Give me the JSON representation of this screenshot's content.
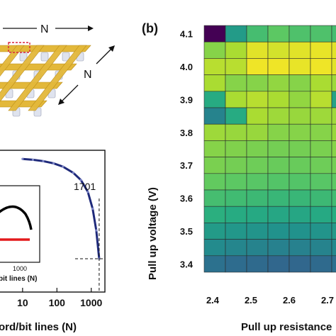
{
  "panel_a": {
    "schematic": {
      "n_label_top": "N",
      "n_label_side": "N",
      "colors": {
        "bar": "#e3b83a",
        "bar_edge": "#b98b18",
        "cell": "#dfe3ee",
        "highlight": "#d6243c"
      }
    },
    "inset_tick": "1000",
    "inset_xlabel": "bit lines (N)",
    "inset_colors": {
      "upper": "#000000",
      "lower": "#e31a1c"
    }
  },
  "panel_b": {
    "panel_label": "(b)"
  },
  "chart_data": [
    {
      "type": "line",
      "xlabel": "ord/bit lines (N)",
      "x_ticks": [
        "10",
        "100",
        "1000"
      ],
      "x_scale": "log",
      "annotation": "1701",
      "marker_x": 1701,
      "series": [
        {
          "color": "#1f2a7a",
          "x": [
            10,
            20,
            40,
            80,
            150,
            300,
            500,
            800,
            1100,
            1400,
            1701
          ],
          "y": [
            0.998,
            0.993,
            0.985,
            0.972,
            0.952,
            0.915,
            0.872,
            0.8,
            0.7,
            0.57,
            0.4
          ]
        }
      ]
    },
    {
      "type": "heatmap",
      "xlabel": "Pull up resistance",
      "ylabel": "Pull up voltage (V)",
      "x_ticks": [
        "2.4",
        "2.5",
        "2.6",
        "2.7"
      ],
      "y_ticks": [
        "4.1",
        "4.0",
        "3.9",
        "3.8",
        "3.7",
        "3.6",
        "3.5",
        "3.4"
      ],
      "n_cols": 7,
      "n_rows": 15,
      "colormap": "viridis",
      "values": [
        [
          0.0,
          0.55,
          0.7,
          0.75,
          0.72,
          0.72,
          0.7
        ],
        [
          0.82,
          0.88,
          0.96,
          0.94,
          0.96,
          0.97,
          0.96
        ],
        [
          0.9,
          0.9,
          0.98,
          0.98,
          0.97,
          0.98,
          0.96
        ],
        [
          0.88,
          0.82,
          0.82,
          0.84,
          0.82,
          0.88,
          0.86
        ],
        [
          0.62,
          0.88,
          0.9,
          0.88,
          0.84,
          0.9,
          0.58
        ],
        [
          0.45,
          0.62,
          0.88,
          0.86,
          0.85,
          0.86,
          0.86
        ],
        [
          0.86,
          0.85,
          0.85,
          0.82,
          0.82,
          0.82,
          0.85
        ],
        [
          0.82,
          0.81,
          0.8,
          0.79,
          0.79,
          0.8,
          0.82
        ],
        [
          0.8,
          0.79,
          0.78,
          0.77,
          0.77,
          0.78,
          0.79
        ],
        [
          0.76,
          0.75,
          0.74,
          0.73,
          0.73,
          0.74,
          0.75
        ],
        [
          0.7,
          0.69,
          0.68,
          0.67,
          0.67,
          0.68,
          0.69
        ],
        [
          0.64,
          0.62,
          0.61,
          0.6,
          0.6,
          0.61,
          0.63
        ],
        [
          0.55,
          0.53,
          0.52,
          0.51,
          0.51,
          0.52,
          0.54
        ],
        [
          0.48,
          0.46,
          0.45,
          0.44,
          0.44,
          0.45,
          0.47
        ],
        [
          0.38,
          0.36,
          0.35,
          0.34,
          0.34,
          0.35,
          0.37
        ]
      ]
    }
  ]
}
